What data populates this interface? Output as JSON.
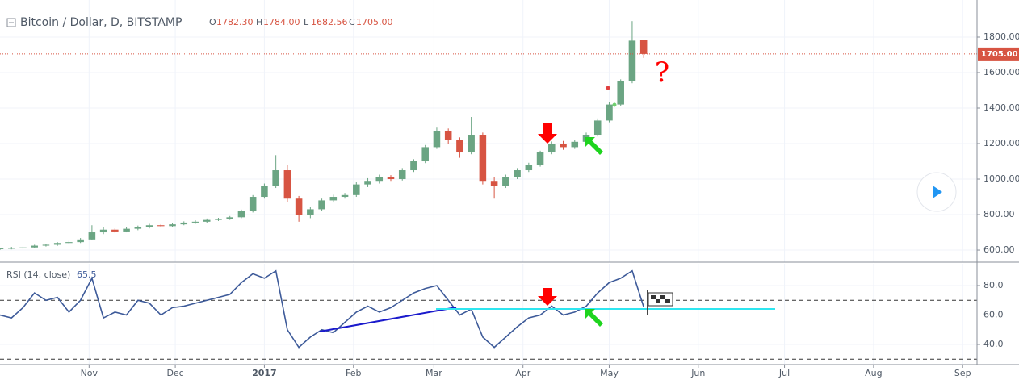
{
  "chart_data": {
    "type": "candlestick",
    "title": "Bitcoin / Dollar, D, BITSTAMP",
    "ohlc_keys": [
      "O",
      "H",
      "L",
      "C"
    ],
    "ohlc_labels": [
      "1782.30",
      "1784.00",
      "1682.56",
      "1705.00"
    ],
    "up_color": "#6ba583",
    "down_color": "#d75442",
    "x": [
      0,
      4,
      8,
      12,
      16,
      20,
      24,
      28,
      32,
      36,
      40,
      44,
      48,
      52,
      56,
      60,
      64,
      68,
      72,
      76,
      80,
      84,
      88,
      92,
      96,
      100,
      104,
      108,
      112,
      116,
      120,
      124,
      128,
      132,
      136,
      140,
      144,
      148,
      152,
      156,
      160,
      164,
      168,
      172,
      176,
      180,
      184,
      188,
      192,
      196,
      200,
      204,
      208,
      212,
      216,
      220,
      224
    ],
    "xlim": [
      0,
      340
    ],
    "xticks": [
      {
        "value": 31,
        "label": "Nov"
      },
      {
        "value": 61,
        "label": "Dec"
      },
      {
        "value": 92,
        "label": "2017"
      },
      {
        "value": 123,
        "label": "Feb"
      },
      {
        "value": 151,
        "label": "Mar"
      },
      {
        "value": 182,
        "label": "Apr"
      },
      {
        "value": 212,
        "label": "May"
      },
      {
        "value": 243,
        "label": "Jun"
      },
      {
        "value": 273,
        "label": "Jul"
      },
      {
        "value": 304,
        "label": "Aug"
      },
      {
        "value": 335,
        "label": "Sep"
      }
    ],
    "ohlc": [
      [
        605,
        614,
        600,
        610
      ],
      [
        610,
        618,
        604,
        612
      ],
      [
        612,
        620,
        606,
        615
      ],
      [
        615,
        630,
        611,
        625
      ],
      [
        625,
        636,
        620,
        630
      ],
      [
        630,
        645,
        624,
        640
      ],
      [
        640,
        652,
        636,
        645
      ],
      [
        645,
        668,
        640,
        660
      ],
      [
        660,
        740,
        655,
        700
      ],
      [
        700,
        730,
        690,
        715
      ],
      [
        715,
        722,
        698,
        705
      ],
      [
        705,
        728,
        700,
        720
      ],
      [
        720,
        738,
        712,
        730
      ],
      [
        730,
        748,
        722,
        740
      ],
      [
        740,
        746,
        728,
        735
      ],
      [
        735,
        752,
        730,
        745
      ],
      [
        745,
        762,
        740,
        755
      ],
      [
        755,
        768,
        748,
        760
      ],
      [
        760,
        778,
        754,
        770
      ],
      [
        770,
        782,
        764,
        775
      ],
      [
        775,
        792,
        770,
        785
      ],
      [
        785,
        828,
        780,
        820
      ],
      [
        820,
        910,
        812,
        900
      ],
      [
        900,
        975,
        890,
        960
      ],
      [
        960,
        1135,
        950,
        1050
      ],
      [
        1050,
        1080,
        870,
        890
      ],
      [
        890,
        905,
        760,
        800
      ],
      [
        800,
        842,
        780,
        830
      ],
      [
        830,
        890,
        822,
        880
      ],
      [
        880,
        912,
        868,
        900
      ],
      [
        900,
        922,
        890,
        910
      ],
      [
        910,
        985,
        900,
        970
      ],
      [
        970,
        1005,
        955,
        990
      ],
      [
        990,
        1025,
        975,
        1010
      ],
      [
        1010,
        1022,
        990,
        1000
      ],
      [
        1000,
        1062,
        992,
        1050
      ],
      [
        1050,
        1112,
        1040,
        1100
      ],
      [
        1100,
        1192,
        1090,
        1180
      ],
      [
        1180,
        1290,
        1170,
        1270
      ],
      [
        1270,
        1285,
        1200,
        1220
      ],
      [
        1220,
        1235,
        1120,
        1150
      ],
      [
        1150,
        1350,
        1140,
        1250
      ],
      [
        1250,
        1262,
        970,
        990
      ],
      [
        990,
        1010,
        890,
        960
      ],
      [
        960,
        1025,
        950,
        1010
      ],
      [
        1010,
        1062,
        1000,
        1050
      ],
      [
        1050,
        1092,
        1040,
        1080
      ],
      [
        1080,
        1160,
        1070,
        1150
      ],
      [
        1150,
        1212,
        1140,
        1200
      ],
      [
        1200,
        1215,
        1165,
        1180
      ],
      [
        1180,
        1222,
        1170,
        1210
      ],
      [
        1210,
        1262,
        1200,
        1250
      ],
      [
        1250,
        1342,
        1240,
        1330
      ],
      [
        1330,
        1432,
        1320,
        1420
      ],
      [
        1420,
        1562,
        1410,
        1550
      ],
      [
        1550,
        1890,
        1540,
        1780
      ],
      [
        1782.3,
        1784,
        1682.56,
        1705
      ]
    ],
    "ylim": [
      532,
      2009
    ],
    "yticks": [
      {
        "value": 600,
        "label": "600.00"
      },
      {
        "value": 800,
        "label": "800.00"
      },
      {
        "value": 1000,
        "label": "1000.00"
      },
      {
        "value": 1200,
        "label": "1200.00"
      },
      {
        "value": 1400,
        "label": "1400.00"
      },
      {
        "value": 1600,
        "label": "1600.00"
      },
      {
        "value": 1800,
        "label": "1800.00"
      }
    ],
    "annotation": "?",
    "rsi": {
      "title": "RSI (14, close)",
      "color": "#3d5a99",
      "values": [
        60,
        58,
        65,
        75,
        70,
        72,
        62,
        70,
        85,
        58,
        62,
        60,
        70,
        68,
        60,
        65,
        66,
        68,
        70,
        72,
        74,
        82,
        88,
        85,
        90,
        50,
        38,
        45,
        50,
        48,
        55,
        62,
        66,
        62,
        65,
        70,
        75,
        78,
        80,
        70,
        60,
        64,
        45,
        38,
        45,
        52,
        58,
        60,
        66,
        60,
        62,
        66,
        75,
        82,
        85,
        90,
        65.5
      ],
      "ylim": [
        26.3,
        94.8
      ],
      "yticks": [
        {
          "value": 40,
          "label": "40.0"
        },
        {
          "value": 60,
          "label": "60.0"
        },
        {
          "value": 80,
          "label": "80.0"
        }
      ],
      "bands": [
        70,
        30
      ]
    },
    "grid": true
  }
}
